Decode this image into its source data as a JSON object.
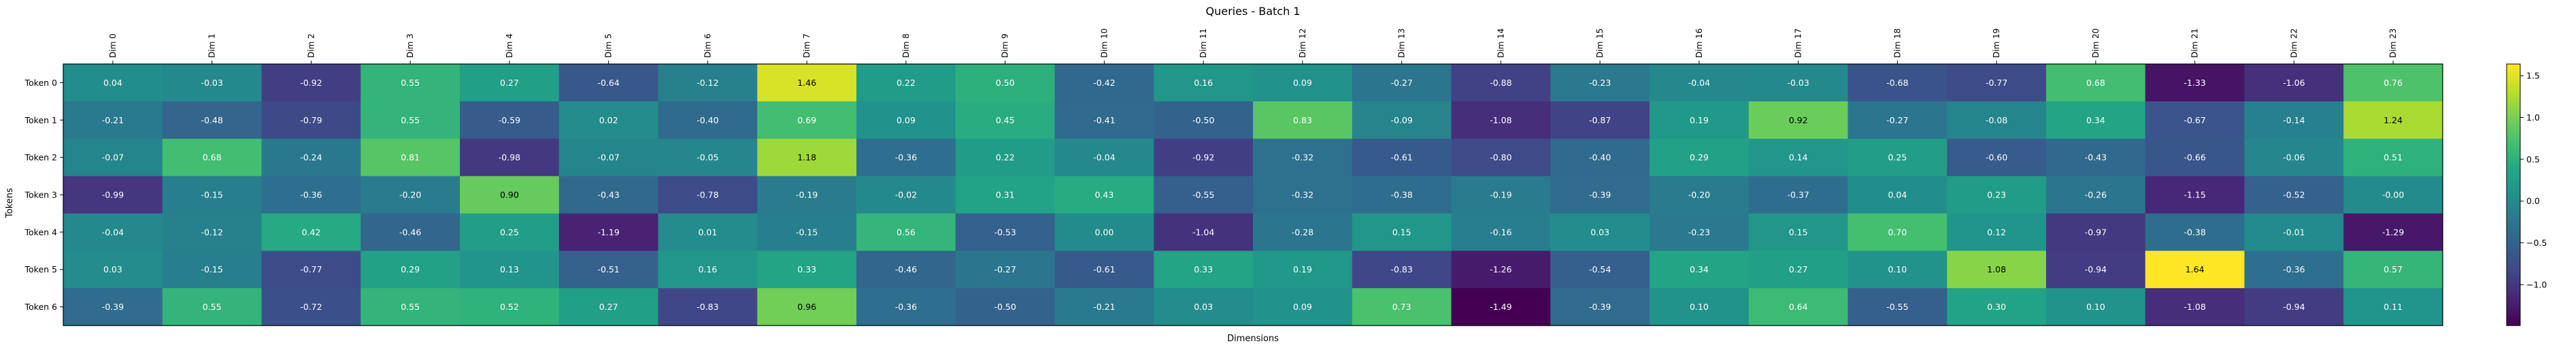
{
  "chart_data": {
    "type": "heatmap",
    "title": "Queries - Batch 1",
    "xlabel": "Dimensions",
    "ylabel": "Tokens",
    "colormap": "viridis",
    "columns": [
      "Dim 0",
      "Dim 1",
      "Dim 2",
      "Dim 3",
      "Dim 4",
      "Dim 5",
      "Dim 6",
      "Dim 7",
      "Dim 8",
      "Dim 9",
      "Dim 10",
      "Dim 11",
      "Dim 12",
      "Dim 13",
      "Dim 14",
      "Dim 15",
      "Dim 16",
      "Dim 17",
      "Dim 18",
      "Dim 19",
      "Dim 20",
      "Dim 21",
      "Dim 22",
      "Dim 23"
    ],
    "rows": [
      "Token 0",
      "Token 1",
      "Token 2",
      "Token 3",
      "Token 4",
      "Token 5",
      "Token 6"
    ],
    "values": [
      [
        0.04,
        -0.03,
        -0.92,
        0.55,
        0.27,
        -0.64,
        -0.12,
        1.46,
        0.22,
        0.5,
        -0.42,
        0.16,
        0.09,
        -0.27,
        -0.88,
        -0.23,
        -0.04,
        -0.03,
        -0.68,
        -0.77,
        0.68,
        -1.33,
        -1.06,
        0.76
      ],
      [
        -0.21,
        -0.48,
        -0.79,
        0.55,
        -0.59,
        0.02,
        -0.4,
        0.69,
        0.09,
        0.45,
        -0.41,
        -0.5,
        0.83,
        -0.09,
        -1.08,
        -0.87,
        0.19,
        0.92,
        -0.27,
        -0.08,
        0.34,
        -0.67,
        -0.14,
        1.24
      ],
      [
        -0.07,
        0.68,
        -0.24,
        0.81,
        -0.98,
        -0.07,
        -0.05,
        1.18,
        -0.36,
        0.22,
        -0.04,
        -0.92,
        -0.32,
        -0.61,
        -0.8,
        -0.4,
        0.29,
        0.14,
        0.25,
        -0.6,
        -0.43,
        -0.66,
        -0.06,
        0.51
      ],
      [
        -0.99,
        -0.15,
        -0.36,
        -0.2,
        0.9,
        -0.43,
        -0.78,
        -0.19,
        -0.02,
        0.31,
        0.43,
        -0.55,
        -0.32,
        -0.38,
        -0.19,
        -0.39,
        -0.2,
        -0.37,
        0.04,
        0.23,
        -0.26,
        -1.15,
        -0.52,
        -0.0
      ],
      [
        -0.04,
        -0.12,
        0.42,
        -0.46,
        0.25,
        -1.19,
        0.01,
        -0.15,
        0.56,
        -0.53,
        0.0,
        -1.04,
        -0.28,
        0.15,
        -0.16,
        0.03,
        -0.23,
        0.15,
        0.7,
        0.12,
        -0.97,
        -0.38,
        -0.01,
        -1.29
      ],
      [
        0.03,
        -0.15,
        -0.77,
        0.29,
        0.13,
        -0.51,
        0.16,
        0.33,
        -0.46,
        -0.27,
        -0.61,
        0.33,
        0.19,
        -0.83,
        -1.26,
        -0.54,
        0.34,
        0.27,
        0.1,
        1.08,
        -0.94,
        1.64,
        -0.36,
        0.57
      ],
      [
        -0.39,
        0.55,
        -0.72,
        0.55,
        0.52,
        0.27,
        -0.83,
        0.96,
        -0.36,
        -0.5,
        -0.21,
        0.03,
        0.09,
        0.73,
        -1.49,
        -0.39,
        0.1,
        0.64,
        -0.55,
        0.3,
        0.1,
        -1.08,
        -0.94,
        0.11
      ]
    ],
    "value_labels": [
      [
        "0.04",
        "-0.03",
        "-0.92",
        "0.55",
        "0.27",
        "-0.64",
        "-0.12",
        "1.46",
        "0.22",
        "0.50",
        "-0.42",
        "0.16",
        "0.09",
        "-0.27",
        "-0.88",
        "-0.23",
        "-0.04",
        "-0.03",
        "-0.68",
        "-0.77",
        "0.68",
        "-1.33",
        "-1.06",
        "0.76"
      ],
      [
        "-0.21",
        "-0.48",
        "-0.79",
        "0.55",
        "-0.59",
        "0.02",
        "-0.40",
        "0.69",
        "0.09",
        "0.45",
        "-0.41",
        "-0.50",
        "0.83",
        "-0.09",
        "-1.08",
        "-0.87",
        "0.19",
        "0.92",
        "-0.27",
        "-0.08",
        "0.34",
        "-0.67",
        "-0.14",
        "1.24"
      ],
      [
        "-0.07",
        "0.68",
        "-0.24",
        "0.81",
        "-0.98",
        "-0.07",
        "-0.05",
        "1.18",
        "-0.36",
        "0.22",
        "-0.04",
        "-0.92",
        "-0.32",
        "-0.61",
        "-0.80",
        "-0.40",
        "0.29",
        "0.14",
        "0.25",
        "-0.60",
        "-0.43",
        "-0.66",
        "-0.06",
        "0.51"
      ],
      [
        "-0.99",
        "-0.15",
        "-0.36",
        "-0.20",
        "0.90",
        "-0.43",
        "-0.78",
        "-0.19",
        "-0.02",
        "0.31",
        "0.43",
        "-0.55",
        "-0.32",
        "-0.38",
        "-0.19",
        "-0.39",
        "-0.20",
        "-0.37",
        "0.04",
        "0.23",
        "-0.26",
        "-1.15",
        "-0.52",
        "-0.00"
      ],
      [
        "-0.04",
        "-0.12",
        "0.42",
        "-0.46",
        "0.25",
        "-1.19",
        "0.01",
        "-0.15",
        "0.56",
        "-0.53",
        "0.00",
        "-1.04",
        "-0.28",
        "0.15",
        "-0.16",
        "0.03",
        "-0.23",
        "0.15",
        "0.70",
        "0.12",
        "-0.97",
        "-0.38",
        "-0.01",
        "-1.29"
      ],
      [
        "0.03",
        "-0.15",
        "-0.77",
        "0.29",
        "0.13",
        "-0.51",
        "0.16",
        "0.33",
        "-0.46",
        "-0.27",
        "-0.61",
        "0.33",
        "0.19",
        "-0.83",
        "-1.26",
        "-0.54",
        "0.34",
        "0.27",
        "0.10",
        "1.08",
        "-0.94",
        "1.64",
        "-0.36",
        "0.57"
      ],
      [
        "-0.39",
        "0.55",
        "-0.72",
        "0.55",
        "0.52",
        "0.27",
        "-0.83",
        "0.96",
        "-0.36",
        "-0.50",
        "-0.21",
        "0.03",
        "0.09",
        "0.73",
        "-1.49",
        "-0.39",
        "0.10",
        "0.64",
        "-0.55",
        "0.30",
        "0.10",
        "-1.08",
        "-0.94",
        "0.11"
      ]
    ],
    "vmin": -1.49,
    "vmax": 1.64,
    "colorbar": {
      "ticks": [
        1.5,
        1.0,
        0.5,
        0.0,
        -0.5,
        -1.0
      ],
      "tick_labels": [
        "1.5",
        "1.0",
        "0.5",
        "0.0",
        "−0.5",
        "−1.0"
      ]
    },
    "grid": false,
    "legend": "colorbar-right"
  }
}
